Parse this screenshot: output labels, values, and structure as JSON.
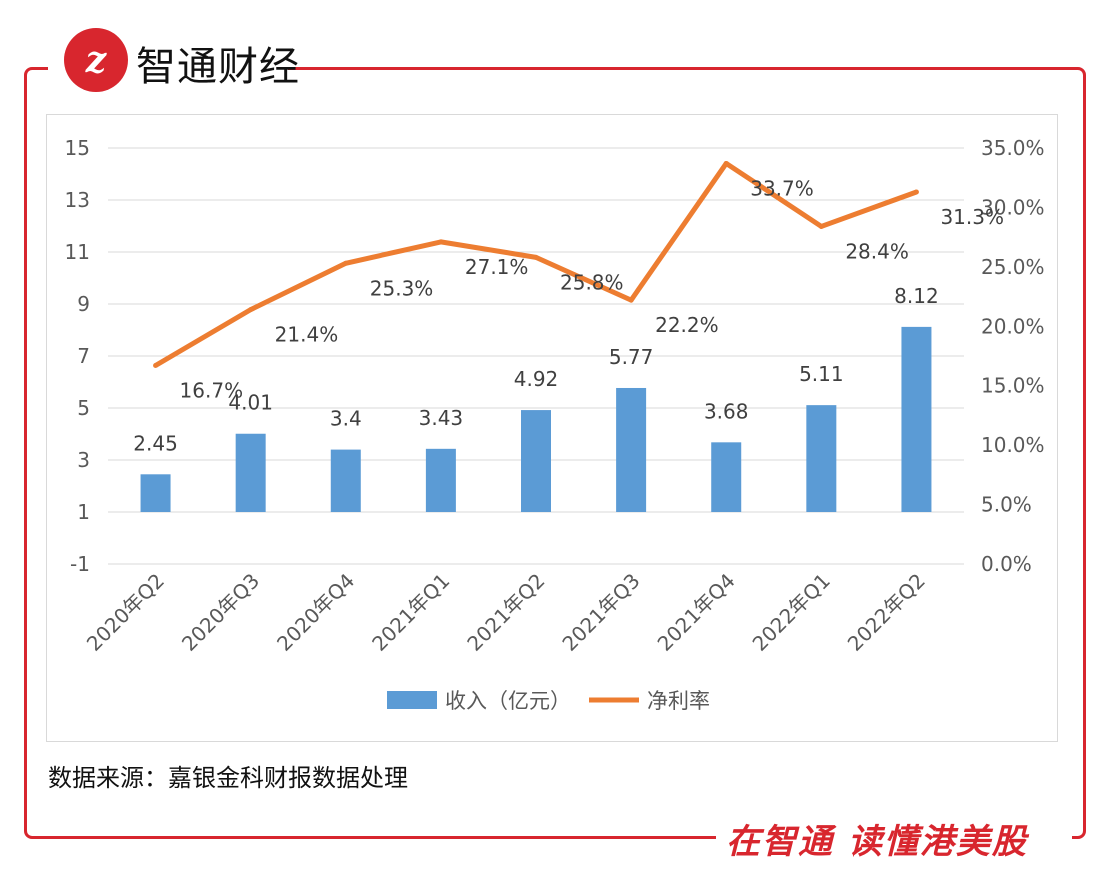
{
  "brand": {
    "logo_glyph": "z",
    "name": "智通财经",
    "slogan": "在智通 读懂港美股",
    "accent_color": "#d8262e"
  },
  "source_note": "数据来源：嘉银金科财报数据处理",
  "chart_data": {
    "type": "bar",
    "categories": [
      "2020年Q2",
      "2020年Q3",
      "2020年Q4",
      "2021年Q1",
      "2021年Q2",
      "2021年Q3",
      "2021年Q4",
      "2022年Q1",
      "2022年Q2"
    ],
    "series": [
      {
        "name": "收入（亿元）",
        "type": "bar",
        "axis": "left",
        "color": "#5b9bd5",
        "values": [
          2.45,
          4.01,
          3.4,
          3.43,
          4.92,
          5.77,
          3.68,
          5.11,
          8.12
        ],
        "labels": [
          "2.45",
          "4.01",
          "3.4",
          "3.43",
          "4.92",
          "5.77",
          "3.68",
          "5.11",
          "8.12"
        ]
      },
      {
        "name": "净利率",
        "type": "line",
        "axis": "right",
        "color": "#ed7d31",
        "values": [
          16.7,
          21.4,
          25.3,
          27.1,
          25.8,
          22.2,
          33.7,
          28.4,
          31.3
        ],
        "labels": [
          "16.7%",
          "21.4%",
          "25.3%",
          "27.1%",
          "25.8%",
          "22.2%",
          "33.7%",
          "28.4%",
          "31.3%"
        ]
      }
    ],
    "left_axis": {
      "min": -1,
      "max": 15,
      "ticks": [
        "15",
        "13",
        "11",
        "9",
        "7",
        "5",
        "3",
        "1",
        "-1"
      ]
    },
    "right_axis": {
      "min": 0,
      "max": 35,
      "ticks": [
        "35.0%",
        "30.0%",
        "25.0%",
        "20.0%",
        "15.0%",
        "10.0%",
        "5.0%",
        "0.0%"
      ]
    },
    "grid": true,
    "legend": "bottom"
  }
}
